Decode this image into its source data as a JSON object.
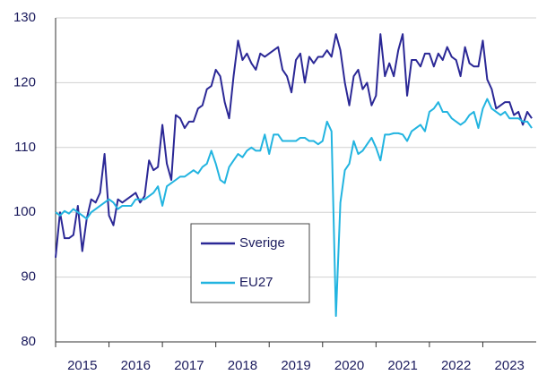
{
  "chart_data": {
    "type": "line",
    "x": [
      2015,
      2015.083,
      2015.167,
      2015.25,
      2015.333,
      2015.417,
      2015.5,
      2015.583,
      2015.667,
      2015.75,
      2015.833,
      2015.917,
      2016,
      2016.083,
      2016.167,
      2016.25,
      2016.333,
      2016.417,
      2016.5,
      2016.583,
      2016.667,
      2016.75,
      2016.833,
      2016.917,
      2017,
      2017.083,
      2017.167,
      2017.25,
      2017.333,
      2017.417,
      2017.5,
      2017.583,
      2017.667,
      2017.75,
      2017.833,
      2017.917,
      2018,
      2018.083,
      2018.167,
      2018.25,
      2018.333,
      2018.417,
      2018.5,
      2018.583,
      2018.667,
      2018.75,
      2018.833,
      2018.917,
      2019,
      2019.083,
      2019.167,
      2019.25,
      2019.333,
      2019.417,
      2019.5,
      2019.583,
      2019.667,
      2019.75,
      2019.833,
      2019.917,
      2020,
      2020.083,
      2020.167,
      2020.25,
      2020.333,
      2020.417,
      2020.5,
      2020.583,
      2020.667,
      2020.75,
      2020.833,
      2020.917,
      2021,
      2021.083,
      2021.167,
      2021.25,
      2021.333,
      2021.417,
      2021.5,
      2021.583,
      2021.667,
      2021.75,
      2021.833,
      2021.917,
      2022,
      2022.083,
      2022.167,
      2022.25,
      2022.333,
      2022.417,
      2022.5,
      2022.583,
      2022.667,
      2022.75,
      2022.833,
      2022.917,
      2023,
      2023.083,
      2023.167,
      2023.25,
      2023.333,
      2023.417,
      2023.5,
      2023.583,
      2023.667,
      2023.75,
      2023.833,
      2023.917
    ],
    "series": [
      {
        "name": "Sverige",
        "color": "#2b2896",
        "values": [
          93,
          100,
          96,
          96,
          96.5,
          101,
          94,
          99,
          102,
          101.5,
          103,
          109,
          99.5,
          98,
          102,
          101.5,
          102,
          102.5,
          103,
          101.5,
          102.5,
          108,
          106.5,
          107,
          113.5,
          107.5,
          105,
          115,
          114.5,
          113,
          114,
          114,
          116,
          116.5,
          119,
          119.5,
          122,
          121,
          117,
          114.5,
          121,
          126.5,
          123.5,
          124.5,
          123,
          122,
          124.5,
          124,
          124.5,
          125,
          125.5,
          122,
          121,
          118.5,
          123.5,
          124.5,
          120,
          124,
          123,
          124,
          124,
          125,
          124,
          127.5,
          125,
          120,
          116.5,
          121,
          122,
          119,
          120,
          116.5,
          118,
          127.5,
          121,
          123,
          121,
          125,
          127.5,
          118,
          123.5,
          123.5,
          122.5,
          124.5,
          124.5,
          122.5,
          124.5,
          123.5,
          125.5,
          124,
          123.5,
          121,
          125.5,
          123,
          122.5,
          122.5,
          126.5,
          120.5,
          119,
          116,
          116.5,
          117,
          117,
          115,
          115.5,
          113.5,
          115.5,
          114.5
        ]
      },
      {
        "name": "EU27",
        "color": "#22b4e0",
        "values": [
          100,
          99.5,
          100.2,
          99.8,
          100.5,
          100,
          99.5,
          99,
          100,
          100.5,
          101,
          101.5,
          102,
          101.5,
          100.5,
          101,
          101,
          101,
          102,
          102,
          102,
          102.5,
          103,
          104,
          101,
          104,
          104.5,
          105,
          105.5,
          105.5,
          106,
          106.5,
          106,
          107,
          107.5,
          109.5,
          107.5,
          105,
          104.5,
          107,
          108,
          109,
          108.5,
          109.5,
          110,
          109.5,
          109.5,
          112,
          109,
          112,
          112,
          111,
          111,
          111,
          111,
          111.5,
          111.5,
          111,
          111,
          110.5,
          111,
          114,
          112.5,
          84,
          101.5,
          106.5,
          107.5,
          111,
          109,
          109.5,
          110.5,
          111.5,
          110,
          108,
          112,
          112,
          112.2,
          112.2,
          112,
          111,
          112.5,
          113,
          113.5,
          112.5,
          115.5,
          116,
          117,
          115.5,
          115.5,
          114.5,
          114,
          113.5,
          114,
          115,
          115.5,
          113,
          116,
          117.5,
          116,
          115.5,
          115,
          115.5,
          114.5,
          114.5,
          114.5,
          114,
          114,
          113
        ]
      }
    ],
    "xlim": [
      2015,
      2024
    ],
    "xticks": [
      2015,
      2016,
      2017,
      2018,
      2019,
      2020,
      2021,
      2022,
      2023
    ],
    "ylim": [
      80,
      130
    ],
    "yticks": [
      80,
      90,
      100,
      110,
      120,
      130
    ],
    "grid": true
  }
}
